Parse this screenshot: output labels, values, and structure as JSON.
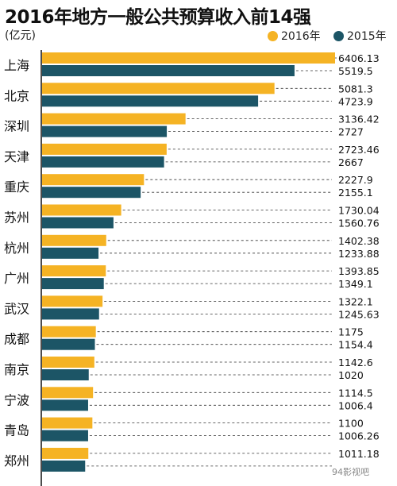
{
  "chart_data": {
    "type": "bar",
    "orientation": "horizontal",
    "title": "2016年地方一般公共预算收入前14强",
    "unit": "(亿元)",
    "legend_position": "top-right",
    "categories": [
      "上海",
      "北京",
      "深圳",
      "天津",
      "重庆",
      "苏州",
      "杭州",
      "广州",
      "武汉",
      "成都",
      "南京",
      "宁波",
      "青岛",
      "郑州"
    ],
    "series": [
      {
        "name": "2016年",
        "color": "#f5b324",
        "values": [
          6406.13,
          5081.3,
          3136.42,
          2723.46,
          2227.9,
          1730.04,
          1402.38,
          1393.85,
          1322.1,
          1175,
          1142.6,
          1114.5,
          1100,
          1011.18
        ],
        "labels": [
          "6406.13",
          "5081.3",
          "3136.42",
          "2723.46",
          "2227.9",
          "1730.04",
          "1402.38",
          "1393.85",
          "1322.1",
          "1175",
          "1142.6",
          "1114.5",
          "1100",
          "1011.18"
        ]
      },
      {
        "name": "2015年",
        "color": "#1c5566",
        "values": [
          5519.5,
          4723.9,
          2727,
          2667,
          2155.1,
          1560.76,
          1233.88,
          1349.1,
          1245.63,
          1154.4,
          1020,
          1006.4,
          1006.26,
          942
        ],
        "labels": [
          "5519.5",
          "4723.9",
          "2727",
          "2667",
          "2155.1",
          "1560.76",
          "1233.88",
          "1349.1",
          "1245.63",
          "1154.4",
          "1020",
          "1006.4",
          "1006.26",
          ""
        ]
      }
    ],
    "xlim": [
      0,
      6406.13
    ]
  },
  "watermark": "94影视吧"
}
